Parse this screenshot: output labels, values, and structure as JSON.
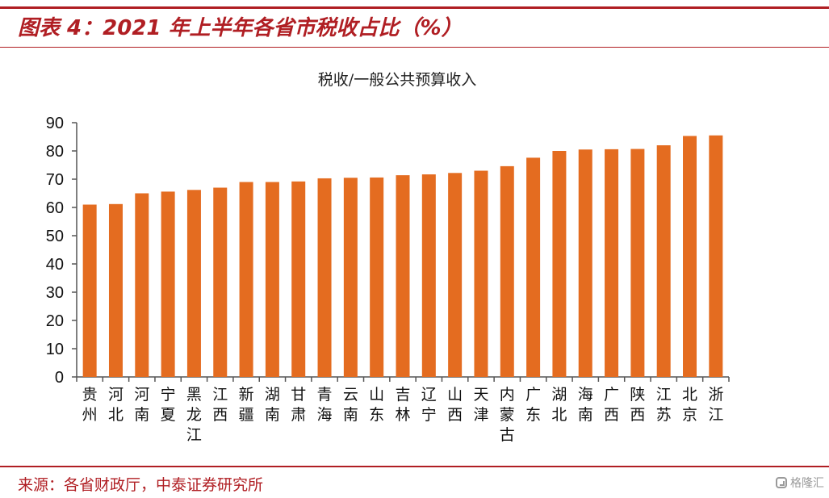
{
  "figure": {
    "title": "图表 4：2021 年上半年各省市税收占比（%）",
    "source": "来源：各省财政厅，中泰证券研究所",
    "watermark": "格隆汇"
  },
  "colors": {
    "accent": "#b01e23",
    "bar": "#e46c20",
    "axis": "#555555",
    "watermark": "#9a9a9a"
  },
  "chart_data": {
    "type": "bar",
    "title": "税收/一般公共预算收入",
    "xlabel": "",
    "ylabel": "",
    "ylim": [
      0,
      90
    ],
    "yticks": [
      0,
      10,
      20,
      30,
      40,
      50,
      60,
      70,
      80,
      90
    ],
    "grid": false,
    "legend": "none",
    "categories": [
      "贵州",
      "河北",
      "河南",
      "宁夏",
      "黑龙江",
      "江西",
      "新疆",
      "湖南",
      "甘肃",
      "青海",
      "云南",
      "山东",
      "吉林",
      "辽宁",
      "山西",
      "天津",
      "内蒙古",
      "广东",
      "湖北",
      "海南",
      "广西",
      "陕西",
      "江苏",
      "北京",
      "浙江"
    ],
    "values": [
      61,
      61.2,
      65,
      65.6,
      66.2,
      67,
      69,
      69,
      69.2,
      70.3,
      70.5,
      70.6,
      71.4,
      71.7,
      72.2,
      73,
      74.6,
      77.6,
      80,
      80.5,
      80.6,
      80.7,
      82,
      85.3,
      85.5
    ]
  }
}
